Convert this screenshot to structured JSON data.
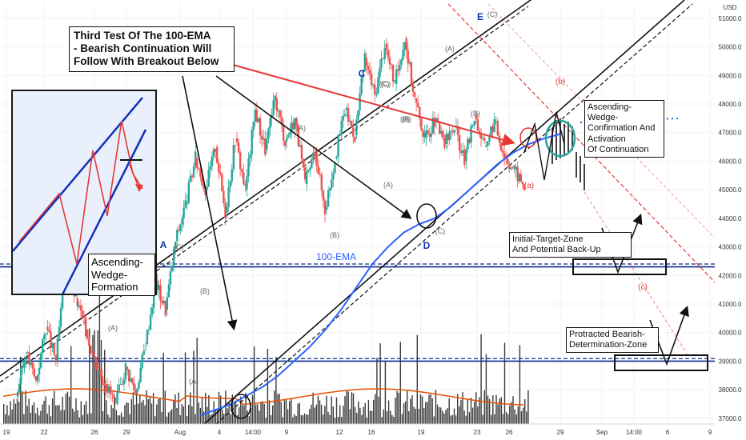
{
  "chart_data": {
    "type": "candlestick",
    "currency_label": "USD",
    "y_ticks": [
      37000,
      38000,
      39000,
      40000,
      41000,
      42000,
      43000,
      44000,
      45000,
      46000,
      47000,
      48000,
      49000,
      50000,
      51000
    ],
    "y_tick_labels": [
      "37000.0",
      "38000.0",
      "39000.0",
      "40000.0",
      "41000.0",
      "42000.0",
      "43000.0",
      "44000.0",
      "45000.0",
      "46000.0",
      "47000.0",
      "48000.0",
      "49000.0",
      "50000.0",
      "51000.0"
    ],
    "ylim": [
      36800,
      51500
    ],
    "x_tick_labels": [
      "19",
      "22",
      "26",
      "29",
      "Aug",
      "4",
      "14:00",
      "9",
      "12",
      "16",
      "19",
      "23",
      "26",
      "29",
      "Sep",
      "14:00",
      "6",
      "9"
    ],
    "price_labels": [
      {
        "value": 42400,
        "label": "42400.0"
      },
      {
        "value": 42300,
        "label": "42300.0"
      },
      {
        "value": 39090,
        "label": "39090.0"
      },
      {
        "value": 39000,
        "label": "39000.0"
      }
    ],
    "horizontal_levels": [
      42400,
      42300,
      39090,
      39000
    ],
    "price_path": [
      37750,
      39300,
      38300,
      40200,
      39000,
      42400,
      41200,
      40100,
      38900,
      38200,
      37500,
      38800,
      37900,
      39600,
      41800,
      40800,
      43200,
      44500,
      46100,
      45000,
      46500,
      44200,
      46800,
      45000,
      47800,
      46400,
      48200,
      46700,
      47500,
      45200,
      46400,
      44300,
      46100,
      47800,
      46900,
      49600,
      48300,
      50100,
      48700,
      50300,
      48200,
      46800,
      47400,
      46600,
      47200,
      46000,
      47600,
      46500,
      47400,
      46200,
      45700,
      45100
    ],
    "ema_100_path": [
      37100,
      37300,
      37500,
      37800,
      38100,
      38500,
      39000,
      39500,
      40100,
      40800,
      41600,
      42400,
      43000,
      43500,
      43800,
      44000,
      44400,
      44900,
      45400,
      45900,
      46300,
      46600,
      46800,
      46950
    ],
    "wave_labels": [
      "A",
      "(C)",
      "(B)",
      "(A)",
      "(A)",
      "(B)",
      "(A)",
      "(C)",
      "(B)",
      "C",
      "(C)",
      "(B)",
      "(A)",
      "(C)",
      "D",
      "(B)",
      "(A)",
      "E",
      "(C)",
      "(b)",
      "(a)",
      "(c)"
    ],
    "ema_label": "100-EMA",
    "callouts": {
      "third_test": [
        "Third Test Of The 100-EMA",
        "- Bearish Continuation Will",
        "Follow With Breakout Below"
      ],
      "confirmation": [
        "Ascending-Wedge-",
        "Confirmation And",
        "Activation",
        "Of Continuation"
      ],
      "initial_target": [
        "Initial-Target-Zone",
        "And Potential Back-Up"
      ],
      "protracted": [
        "Protracted Bearish-",
        "Determination-Zone"
      ],
      "inset": [
        "Ascending-",
        "Wedge-",
        "Formation"
      ]
    },
    "colors": {
      "candle_up": "#26a69a",
      "candle_down": "#ef5350",
      "ema": "#2962ff",
      "levels": "#0d2c8c",
      "arrow_red": "#e53935",
      "volume": "#3a3a3a",
      "volume_ma": "#e65100",
      "wedge": "#111111",
      "channel_red": "#e53935"
    }
  }
}
